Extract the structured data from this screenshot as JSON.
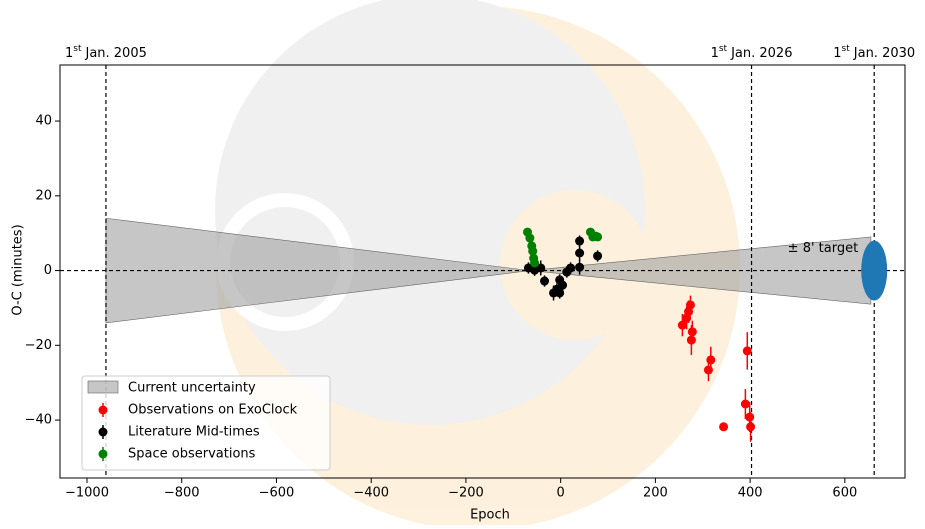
{
  "chart_data": {
    "type": "scatter",
    "xlabel": "Epoch",
    "ylabel": "O-C (minutes)",
    "xlim": [
      -1057,
      727
    ],
    "ylim": [
      -55.5,
      55
    ],
    "xticks": [
      {
        "value": -1000,
        "label": "−1000"
      },
      {
        "value": -800,
        "label": "−800"
      },
      {
        "value": -600,
        "label": "−600"
      },
      {
        "value": -400,
        "label": "−400"
      },
      {
        "value": -200,
        "label": "−200"
      },
      0,
      200,
      400,
      600
    ],
    "yticks": [
      {
        "value": -40,
        "label": "−40"
      },
      {
        "value": -20,
        "label": "−20"
      },
      0,
      20,
      40
    ],
    "hline": 0,
    "dates": [
      {
        "x": -960,
        "day": "1",
        "suffix": "st",
        "text": "Jan. 2005"
      },
      {
        "x": 403,
        "day": "1",
        "suffix": "st",
        "text": "Jan. 2026"
      },
      {
        "x": 662,
        "day": "1",
        "suffix": "st",
        "text": "Jan. 2030"
      }
    ],
    "uncertainty": {
      "name": "Current uncertainty",
      "color": "#a0a0a0",
      "x": [
        -960,
        -65,
        655
      ],
      "upper": [
        14,
        0,
        9
      ],
      "lower": [
        -14,
        0,
        -9
      ]
    },
    "target": {
      "label": "± 8' target",
      "x": 662,
      "y": 0,
      "error": 8,
      "color": "#1f77b4"
    },
    "series": [
      {
        "name": "Observations on ExoClock",
        "color": "#ff0000",
        "x": [
          257,
          266,
          270,
          274,
          276,
          278,
          312,
          317,
          344,
          394,
          390,
          399,
          401
        ],
        "values": [
          -14.6,
          -12.7,
          -11,
          -9.2,
          -18.6,
          -16.4,
          -26.6,
          -23.9,
          -41.8,
          -21.5,
          -35.7,
          -39.2,
          -41.8
        ],
        "errors": [
          3,
          3,
          3,
          2.5,
          4,
          3,
          3,
          3.5,
          1,
          5,
          4,
          4,
          4
        ]
      },
      {
        "name": "Literature Mid-times",
        "color": "#000000",
        "x": [
          -68,
          -55,
          -42,
          -34,
          -15,
          -8,
          -2,
          4,
          13,
          21,
          40,
          40,
          40,
          78,
          -2
        ],
        "values": [
          0.7,
          0.1,
          0.7,
          -2.8,
          -6,
          -5,
          -2.5,
          -3.9,
          -0.4,
          0.7,
          0.9,
          4.7,
          7.9,
          3.9,
          -6
        ],
        "errors": [
          1.5,
          1.5,
          2,
          1.5,
          2,
          1.5,
          1.5,
          2,
          1.5,
          1.5,
          2,
          2,
          1.5,
          1.5,
          1.5
        ]
      },
      {
        "name": "Space observations",
        "color": "#008000",
        "x": [
          -70,
          -65,
          -61,
          -59,
          -57,
          -55,
          63,
          68,
          74,
          78
        ],
        "values": [
          10.3,
          8.7,
          6.6,
          5.2,
          3.3,
          2,
          10.3,
          9,
          9.2,
          9
        ],
        "errors": [
          0.6,
          0.6,
          0.6,
          0.6,
          0.6,
          0.6,
          0.6,
          0.6,
          0.6,
          0.6
        ]
      }
    ]
  }
}
